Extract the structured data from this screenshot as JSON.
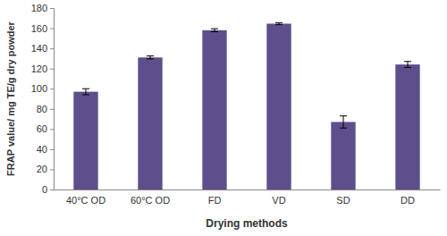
{
  "chart_data": {
    "type": "bar",
    "categories": [
      "40°C OD",
      "60°C OD",
      "FD",
      "VD",
      "SD",
      "DD"
    ],
    "values": [
      97,
      131,
      158,
      164.5,
      67,
      124
    ],
    "errors": [
      3,
      1.5,
      1.5,
      1,
      6,
      3
    ],
    "color": "#5e4e8c",
    "x_label": "Drying methods",
    "y_label": "FRAP value/ mg TE/g dry powder",
    "ylim": [
      0,
      180
    ],
    "yticks": [
      0,
      20,
      40,
      60,
      80,
      100,
      120,
      140,
      160,
      180
    ],
    "grid": false
  }
}
